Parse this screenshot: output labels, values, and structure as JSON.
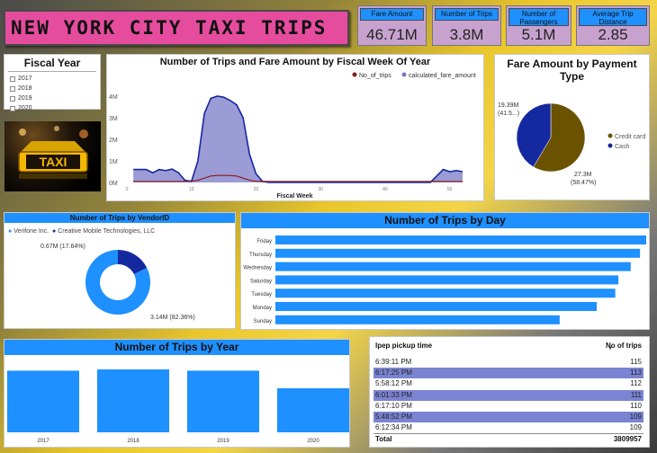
{
  "header": {
    "title": "NEW YORK CITY TAXI TRIPS"
  },
  "kpis": {
    "fare_amount": {
      "label": "Fare Amount",
      "value": "46.71M"
    },
    "trips": {
      "label": "Number of Trips",
      "value": "3.8M"
    },
    "passengers": {
      "label": "Number of Passengers",
      "value": "5.1M"
    },
    "distance": {
      "label": "Average Trip Distance",
      "value": "2.85"
    }
  },
  "fiscal_year": {
    "title": "Fiscal Year",
    "options": [
      "2017",
      "2018",
      "2019",
      "2020"
    ]
  },
  "taxi_image": {
    "sign_text": "TAXI"
  },
  "colors": {
    "accent_blue": "#1e90ff",
    "title_pink": "#e64c9e",
    "kpi_purple": "#c8a2cf",
    "trip_line": "#8b1a1a",
    "fare_area": "#7a79c8",
    "credit_card": "#6b5200",
    "cash": "#1428a0",
    "vendor_light": "#1e90ff",
    "vendor_dark": "#1428a0",
    "table_alt_row": "#7b84d2"
  },
  "chart_data": [
    {
      "type": "area",
      "title": "Number of Trips and Fare Amount by Fiscal Week Of Year",
      "xlabel": "Fiscal Week",
      "ylabel": "",
      "ylim": [
        0,
        4.5
      ],
      "y_ticks": [
        "0M",
        "1M",
        "2M",
        "3M",
        "4M"
      ],
      "y_tick_values": [
        0,
        1,
        2,
        3,
        4
      ],
      "x_ticks": [
        "0",
        "10",
        "20",
        "30",
        "40",
        "50"
      ],
      "x_tick_values": [
        0,
        10,
        20,
        30,
        40,
        50
      ],
      "xlim": [
        0,
        52
      ],
      "legend_position": "top-right",
      "series": [
        {
          "name": "No_of_trips",
          "x": [
            1,
            9,
            10,
            11,
            12,
            13,
            14,
            15,
            16,
            17,
            18,
            19,
            20,
            21,
            52
          ],
          "values": [
            0.05,
            0.05,
            0.06,
            0.1,
            0.2,
            0.3,
            0.32,
            0.33,
            0.32,
            0.3,
            0.2,
            0.1,
            0.06,
            0.05,
            0.05
          ]
        },
        {
          "name": "calculated_fare_amount",
          "x": [
            1,
            3,
            4,
            5,
            6,
            7,
            8,
            9,
            10,
            11,
            12,
            13,
            14,
            15,
            16,
            17,
            18,
            19,
            20,
            21,
            22,
            47,
            48,
            49,
            50,
            51,
            52
          ],
          "values": [
            0.6,
            0.6,
            0.45,
            0.6,
            0.55,
            0.62,
            0.45,
            0.1,
            0.05,
            1.0,
            3.2,
            3.9,
            4.0,
            3.95,
            3.8,
            3.6,
            3.0,
            1.3,
            0.4,
            0.05,
            0.0,
            0.0,
            0.3,
            0.6,
            0.5,
            0.55,
            0.5
          ]
        }
      ]
    },
    {
      "type": "pie",
      "title": "Fare Amount by Payment Type",
      "legend_position": "right",
      "slices": [
        {
          "name": "Credit card",
          "value": 27.3,
          "label": "27.3M",
          "pct_label": "(58.47%)"
        },
        {
          "name": "Cash",
          "value": 19.39,
          "label": "19.39M",
          "pct_label": "(41.5...)"
        }
      ]
    },
    {
      "type": "pie",
      "title": "Number of Trips by VendorID",
      "legend_position": "top-left",
      "slices": [
        {
          "name": "Verifone Inc.",
          "value": 3.14,
          "label": "3.14M (82.36%)"
        },
        {
          "name": "Creative Mobile Technologies, LLC",
          "value": 0.67,
          "label": "0.67M (17.64%)"
        }
      ]
    },
    {
      "type": "bar",
      "title": "Number of Trips by Day",
      "categories": [
        "Friday",
        "Thursday",
        "Wednesday",
        "Saturday",
        "Tuesday",
        "Monday",
        "Sunday"
      ],
      "values": [
        0.6,
        0.59,
        0.575,
        0.555,
        0.55,
        0.52,
        0.46
      ],
      "xlim": [
        0,
        0.6
      ]
    },
    {
      "type": "bar",
      "title": "Number of Trips by Year",
      "categories": [
        "2017",
        "2018",
        "2019",
        "2020"
      ],
      "values": [
        0.98,
        1.0,
        0.98,
        0.7
      ],
      "ylim": [
        0,
        1.0
      ]
    }
  ],
  "table": {
    "headers": [
      "lpep pickup time",
      "No of trips"
    ],
    "rows": [
      [
        "6:39:11 PM",
        "115"
      ],
      [
        "6:17:25 PM",
        "113"
      ],
      [
        "5:58:12 PM",
        "112"
      ],
      [
        "6:01:33 PM",
        "111"
      ],
      [
        "6:17:10 PM",
        "110"
      ],
      [
        "5:48:52 PM",
        "109"
      ],
      [
        "6:12:34 PM",
        "109"
      ]
    ],
    "total_label": "Total",
    "total_value": "3809957"
  }
}
